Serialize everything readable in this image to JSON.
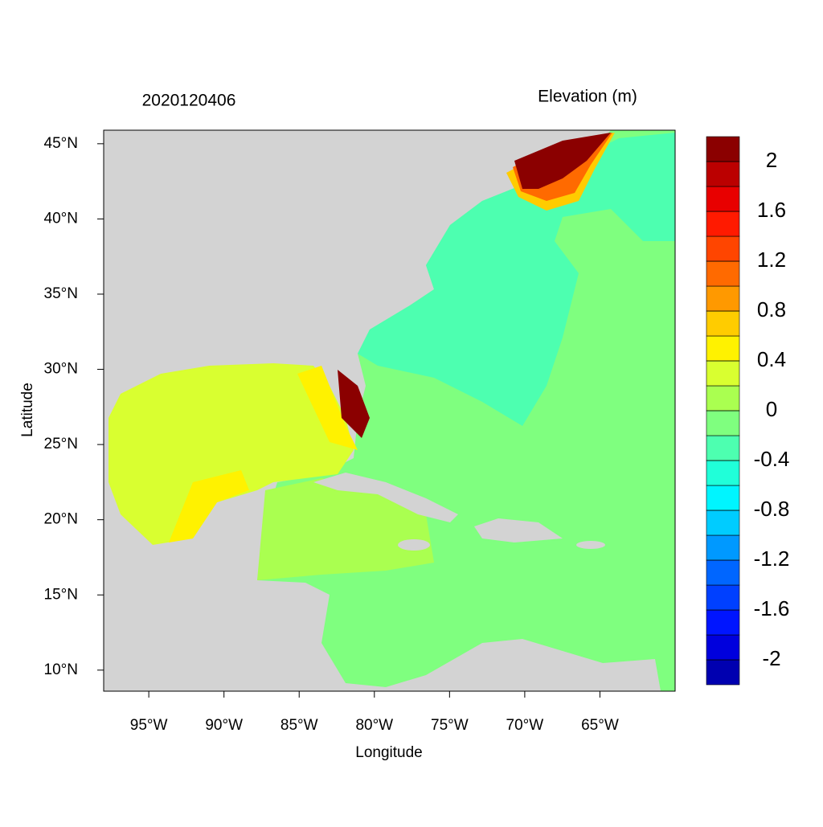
{
  "chart_data": {
    "type": "map",
    "title": "2020120406",
    "subtitle": "Elevation (m)",
    "x_label": "Longitude",
    "y_label": "Latitude",
    "xlim": [
      -98,
      -60
    ],
    "ylim": [
      8.6,
      45.9
    ],
    "xticks": [
      {
        "value": -95,
        "label": "95°W"
      },
      {
        "value": -90,
        "label": "90°W"
      },
      {
        "value": -85,
        "label": "85°W"
      },
      {
        "value": -80,
        "label": "80°W"
      },
      {
        "value": -75,
        "label": "75°W"
      },
      {
        "value": -70,
        "label": "70°W"
      },
      {
        "value": -65,
        "label": "65°W"
      }
    ],
    "yticks": [
      {
        "value": 10,
        "label": "10°N"
      },
      {
        "value": 15,
        "label": "15°N"
      },
      {
        "value": 20,
        "label": "20°N"
      },
      {
        "value": 25,
        "label": "25°N"
      },
      {
        "value": 30,
        "label": "30°N"
      },
      {
        "value": 35,
        "label": "35°N"
      },
      {
        "value": 40,
        "label": "40°N"
      },
      {
        "value": 45,
        "label": "45°N"
      }
    ],
    "colorbar": {
      "clim": [
        -2.2,
        2.2
      ],
      "colors": [
        "#0000b0",
        "#0000dd",
        "#0015ff",
        "#0040ff",
        "#0066ff",
        "#0099ff",
        "#00ccff",
        "#00f5ff",
        "#20ffd9",
        "#4dffb0",
        "#7fff7f",
        "#aaff50",
        "#d9ff30",
        "#fff200",
        "#ffcc00",
        "#ff9900",
        "#ff6a00",
        "#ff4500",
        "#ff1a00",
        "#e80000",
        "#bb0000",
        "#8b0000"
      ],
      "ticks": [
        2,
        1.6,
        1.2,
        0.8,
        0.4,
        0,
        -0.4,
        -0.8,
        -1.2,
        -1.6,
        -2
      ]
    }
  }
}
